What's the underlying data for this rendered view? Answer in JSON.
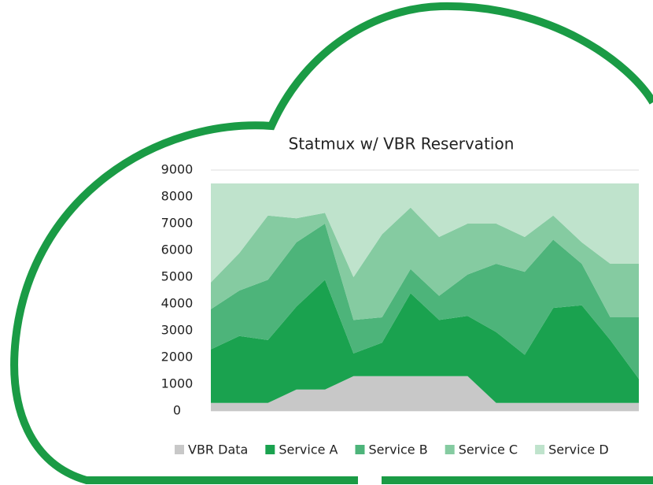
{
  "chart_data": {
    "type": "stacked_area",
    "title": "Statmux w/ VBR Reservation",
    "categories": [
      null,
      null,
      null,
      null,
      null,
      null,
      null,
      null,
      null,
      null,
      null,
      null,
      null,
      null,
      null,
      null
    ],
    "series": [
      {
        "name": "VBR Data",
        "color": "#c8c8c8",
        "values": [
          300,
          300,
          300,
          800,
          800,
          1300,
          1300,
          1300,
          1300,
          1300,
          300,
          300,
          300,
          300,
          300,
          300
        ]
      },
      {
        "name": "Service A",
        "color": "#1aa24f",
        "values": [
          2000,
          2500,
          2350,
          3100,
          4100,
          850,
          1250,
          3100,
          2100,
          2250,
          2650,
          1800,
          3550,
          3650,
          2350,
          900
        ]
      },
      {
        "name": "Service B",
        "color": "#4db47a",
        "values": [
          1500,
          1700,
          2250,
          2400,
          2100,
          1250,
          950,
          900,
          900,
          1550,
          2550,
          3100,
          2550,
          1550,
          850,
          2300
        ]
      },
      {
        "name": "Service C",
        "color": "#85cba1",
        "values": [
          1000,
          1400,
          2400,
          900,
          400,
          1600,
          3100,
          2300,
          2200,
          1900,
          1500,
          1300,
          900,
          800,
          2000,
          2000
        ]
      },
      {
        "name": "Service D",
        "color": "#bfe3cc",
        "values": [
          3700,
          2600,
          1200,
          1300,
          1100,
          3500,
          1900,
          900,
          2000,
          1500,
          1500,
          2000,
          1200,
          2200,
          3000,
          3000
        ]
      }
    ],
    "ylim": [
      0,
      9000
    ],
    "yticks": [
      0,
      1000,
      2000,
      3000,
      4000,
      5000,
      6000,
      7000,
      8000,
      9000
    ],
    "grid": true,
    "legend": "bottom"
  }
}
